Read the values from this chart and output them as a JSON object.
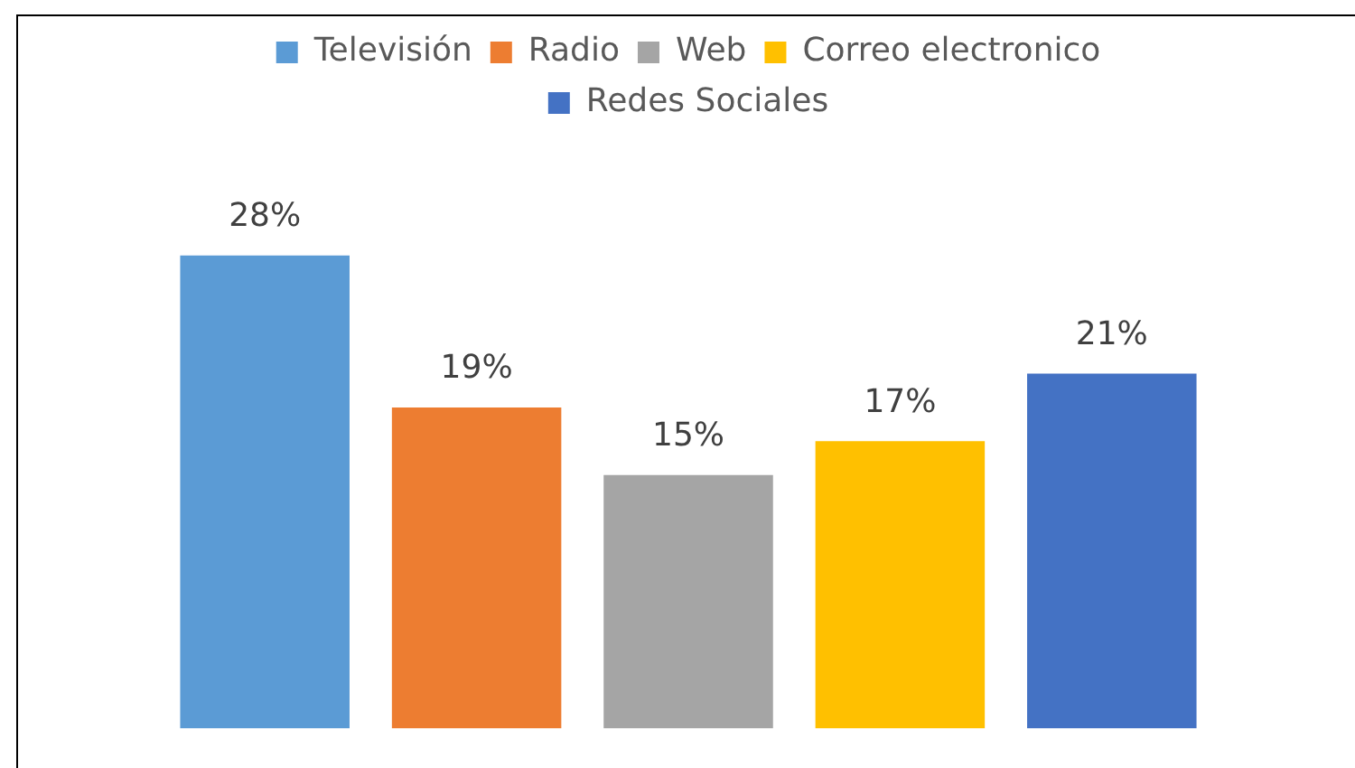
{
  "chart_data": {
    "type": "bar",
    "categories": [
      null
    ],
    "legend": "top",
    "series": [
      {
        "name": "Televisión",
        "color": "#5b9bd5",
        "values": [
          28
        ],
        "value_labels": [
          "28%"
        ]
      },
      {
        "name": "Radio",
        "color": "#ed7d31",
        "values": [
          19
        ],
        "value_labels": [
          "19%"
        ]
      },
      {
        "name": "Web",
        "color": "#a5a5a5",
        "values": [
          15
        ],
        "value_labels": [
          "15%"
        ]
      },
      {
        "name": "Correo electronico",
        "color": "#ffc000",
        "values": [
          17
        ],
        "value_labels": [
          "17%"
        ]
      },
      {
        "name": "Redes Sociales",
        "color": "#4472c4",
        "values": [
          21
        ],
        "value_labels": [
          "21%"
        ]
      }
    ]
  }
}
